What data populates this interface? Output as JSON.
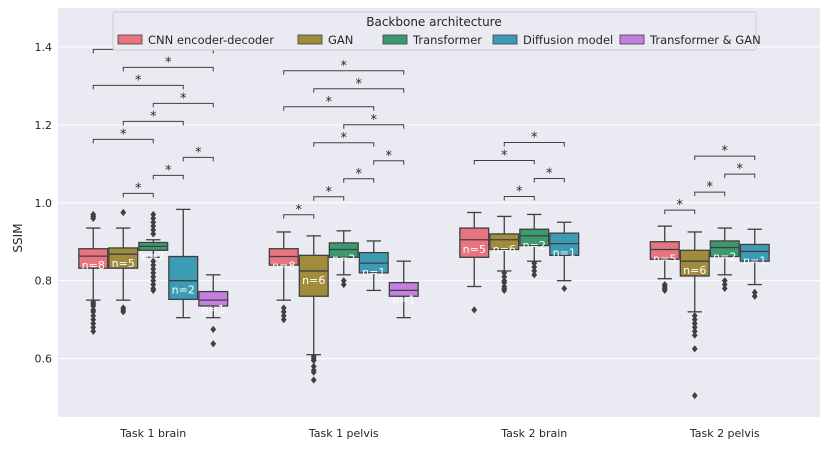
{
  "chart_data": {
    "type": "boxplot",
    "ylabel": "SSIM",
    "xlabel": "",
    "ylim": [
      0.45,
      1.5
    ],
    "yticks": [
      0.6,
      0.8,
      1.0,
      1.2,
      1.4
    ],
    "ytick_labels": [
      "0.6",
      "0.8",
      "1.0",
      "1.2",
      "1.4"
    ],
    "grid": true,
    "legend": {
      "title": "Backbone architecture",
      "placement": "top-center",
      "entries": [
        {
          "name": "CNN encoder-decoder",
          "color": "#e8747f"
        },
        {
          "name": "GAN",
          "color": "#a08c3c"
        },
        {
          "name": "Transformer",
          "color": "#3d9a70"
        },
        {
          "name": "Diffusion model",
          "color": "#3c9cb5"
        },
        {
          "name": "Transformer & GAN",
          "color": "#c47fe0"
        }
      ]
    },
    "categories": [
      "Task 1 brain",
      "Task 1 pelvis",
      "Task 2 brain",
      "Task 2 pelvis"
    ],
    "groups": [
      {
        "category": "Task 1 brain",
        "boxes": [
          {
            "series": 0,
            "q1": 0.832,
            "median": 0.863,
            "q3": 0.882,
            "whislo": 0.75,
            "whishi": 0.935,
            "n_label": "n=8",
            "outliers": [
              0.97,
              0.965,
              0.96,
              0.745,
              0.74,
              0.735,
              0.725,
              0.72,
              0.71,
              0.7,
              0.69,
              0.68,
              0.67
            ]
          },
          {
            "series": 1,
            "q1": 0.832,
            "median": 0.868,
            "q3": 0.884,
            "whislo": 0.75,
            "whishi": 0.935,
            "n_label": "n=5",
            "outliers": [
              0.975,
              0.73,
              0.725,
              0.72
            ]
          },
          {
            "series": 2,
            "q1": 0.878,
            "median": 0.888,
            "q3": 0.898,
            "whislo": 0.86,
            "whishi": 0.905,
            "n_label": "n=2",
            "outliers": [
              0.97,
              0.96,
              0.95,
              0.94,
              0.93,
              0.92,
              0.85,
              0.84,
              0.83,
              0.82,
              0.81,
              0.8,
              0.79,
              0.78,
              0.775
            ]
          },
          {
            "series": 3,
            "q1": 0.752,
            "median": 0.8,
            "q3": 0.862,
            "whislo": 0.705,
            "whishi": 0.983,
            "n_label": "n=2",
            "outliers": []
          },
          {
            "series": 4,
            "q1": 0.735,
            "median": 0.75,
            "q3": 0.772,
            "whislo": 0.705,
            "whishi": 0.815,
            "n_label": "n=1",
            "outliers": [
              0.675,
              0.638
            ]
          }
        ],
        "significance": [
          {
            "from": 0,
            "to": 2,
            "label": "*"
          },
          {
            "from": 0,
            "to": 3,
            "label": "*"
          },
          {
            "from": 0,
            "to": 4,
            "label": "*"
          },
          {
            "from": 2,
            "to": 1,
            "label": "*"
          },
          {
            "from": 1,
            "to": 3,
            "label": "*"
          },
          {
            "from": 1,
            "to": 4,
            "label": "*"
          },
          {
            "from": 2,
            "to": 3,
            "label": "*"
          },
          {
            "from": 2,
            "to": 4,
            "label": "*"
          },
          {
            "from": 3,
            "to": 4,
            "label": "*"
          }
        ]
      },
      {
        "category": "Task 1 pelvis",
        "boxes": [
          {
            "series": 0,
            "q1": 0.84,
            "median": 0.862,
            "q3": 0.882,
            "whislo": 0.75,
            "whishi": 0.925,
            "n_label": "n=8",
            "outliers": [
              0.73,
              0.72,
              0.71,
              0.7
            ]
          },
          {
            "series": 1,
            "q1": 0.76,
            "median": 0.825,
            "q3": 0.865,
            "whislo": 0.61,
            "whishi": 0.915,
            "n_label": "n=6",
            "outliers": [
              0.605,
              0.6,
              0.595,
              0.58,
              0.57,
              0.565,
              0.545
            ]
          },
          {
            "series": 2,
            "q1": 0.86,
            "median": 0.88,
            "q3": 0.897,
            "whislo": 0.815,
            "whishi": 0.928,
            "n_label": "n=2",
            "outliers": [
              0.8,
              0.79
            ]
          },
          {
            "series": 3,
            "q1": 0.82,
            "median": 0.845,
            "q3": 0.872,
            "whislo": 0.775,
            "whishi": 0.902,
            "n_label": "n=1",
            "outliers": []
          },
          {
            "series": 4,
            "q1": 0.76,
            "median": 0.775,
            "q3": 0.795,
            "whislo": 0.705,
            "whishi": 0.85,
            "n_label": "n=1",
            "outliers": []
          }
        ],
        "significance": [
          {
            "from": 0,
            "to": 1,
            "label": "*"
          },
          {
            "from": 0,
            "to": 3,
            "label": "*"
          },
          {
            "from": 0,
            "to": 4,
            "label": "*"
          },
          {
            "from": 1,
            "to": 2,
            "label": "*"
          },
          {
            "from": 1,
            "to": 3,
            "label": "*"
          },
          {
            "from": 1,
            "to": 4,
            "label": "*"
          },
          {
            "from": 2,
            "to": 3,
            "label": "*"
          },
          {
            "from": 2,
            "to": 4,
            "label": "*"
          },
          {
            "from": 3,
            "to": 4,
            "label": "*"
          }
        ]
      },
      {
        "category": "Task 2 brain",
        "boxes": [
          {
            "series": 0,
            "q1": 0.86,
            "median": 0.905,
            "q3": 0.935,
            "whislo": 0.785,
            "whishi": 0.975,
            "n_label": "n=5",
            "outliers": [
              0.725
            ]
          },
          {
            "series": 1,
            "q1": 0.88,
            "median": 0.905,
            "q3": 0.92,
            "whislo": 0.825,
            "whishi": 0.965,
            "n_label": "n=6",
            "outliers": [
              0.82,
              0.81,
              0.8,
              0.795,
              0.785,
              0.78,
              0.775
            ]
          },
          {
            "series": 2,
            "q1": 0.89,
            "median": 0.915,
            "q3": 0.932,
            "whislo": 0.85,
            "whishi": 0.97,
            "n_label": "n=2",
            "outliers": [
              0.845,
              0.835,
              0.825,
              0.815
            ]
          },
          {
            "series": 3,
            "q1": 0.865,
            "median": 0.895,
            "q3": 0.922,
            "whislo": 0.8,
            "whishi": 0.95,
            "n_label": "n=1",
            "outliers": [
              0.78
            ]
          }
        ],
        "significance": [
          {
            "from": 0,
            "to": 2,
            "label": "*"
          },
          {
            "from": 1,
            "to": 2,
            "label": "*"
          },
          {
            "from": 1,
            "to": 3,
            "label": "*"
          },
          {
            "from": 2,
            "to": 3,
            "label": "*"
          }
        ]
      },
      {
        "category": "Task 2 pelvis",
        "boxes": [
          {
            "series": 0,
            "q1": 0.855,
            "median": 0.88,
            "q3": 0.9,
            "whislo": 0.805,
            "whishi": 0.94,
            "n_label": "n=5",
            "outliers": [
              0.79,
              0.785,
              0.78,
              0.775
            ]
          },
          {
            "series": 1,
            "q1": 0.812,
            "median": 0.85,
            "q3": 0.878,
            "whislo": 0.72,
            "whishi": 0.925,
            "n_label": "n=6",
            "outliers": [
              0.71,
              0.7,
              0.69,
              0.68,
              0.67,
              0.66,
              0.625,
              0.505
            ]
          },
          {
            "series": 2,
            "q1": 0.862,
            "median": 0.885,
            "q3": 0.902,
            "whislo": 0.815,
            "whishi": 0.935,
            "n_label": "n=2",
            "outliers": [
              0.8,
              0.79,
              0.78
            ]
          },
          {
            "series": 3,
            "q1": 0.85,
            "median": 0.875,
            "q3": 0.893,
            "whislo": 0.79,
            "whishi": 0.932,
            "n_label": "n=1",
            "outliers": [
              0.77,
              0.76
            ]
          }
        ],
        "significance": [
          {
            "from": 0,
            "to": 1,
            "label": "*"
          },
          {
            "from": 1,
            "to": 2,
            "label": "*"
          },
          {
            "from": 1,
            "to": 3,
            "label": "*"
          },
          {
            "from": 2,
            "to": 3,
            "label": "*"
          }
        ]
      }
    ]
  }
}
